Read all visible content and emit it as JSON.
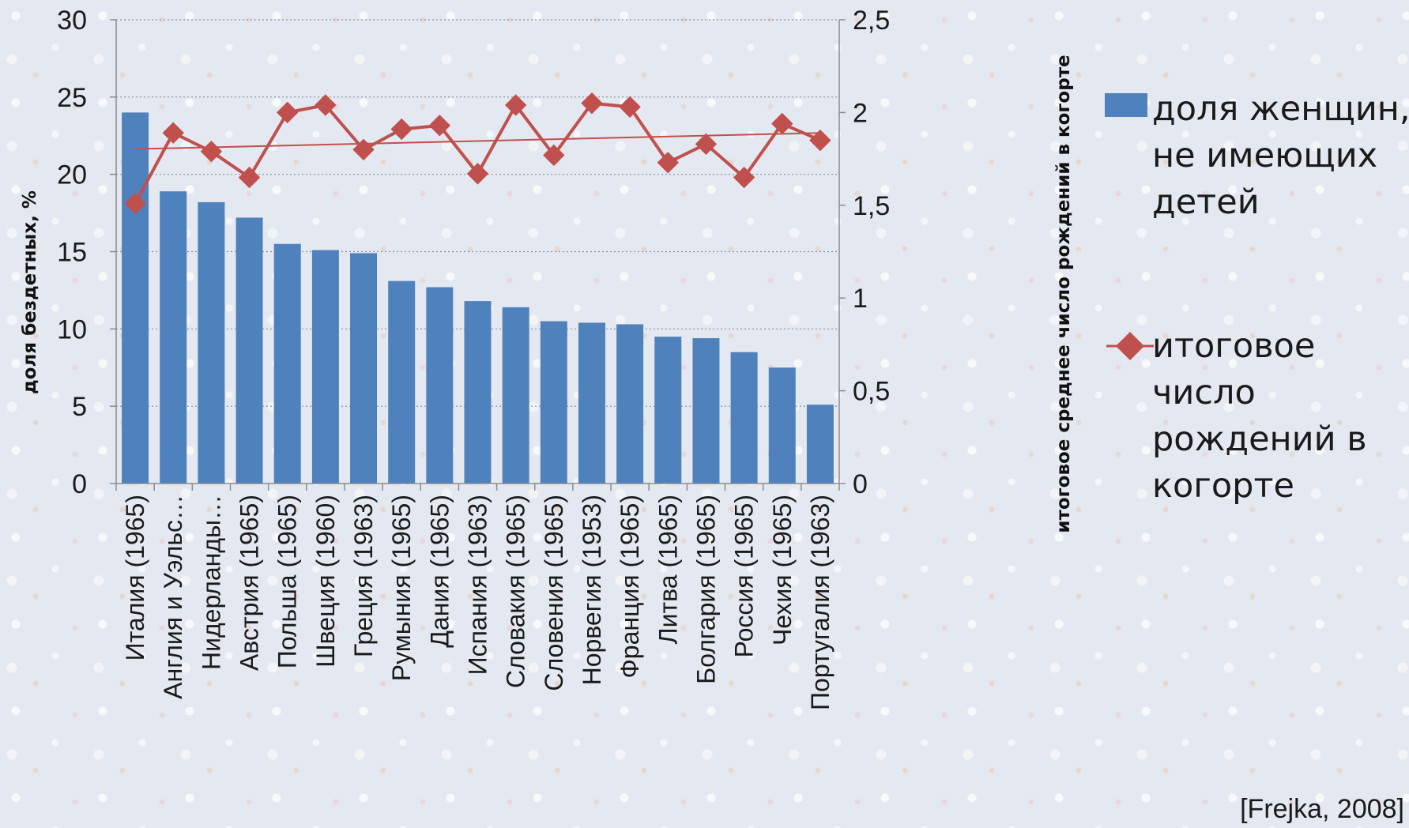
{
  "chart_data": {
    "type": "bar",
    "categories": [
      "Италия (1965)",
      "Англия и Уэльс…",
      "Нидерланды…",
      "Австрия (1965)",
      "Польша (1965)",
      "Швеция (1960)",
      "Греция (1963)",
      "Румыния (1965)",
      "Дания (1965)",
      "Испания (1963)",
      "Словакия (1965)",
      "Словения (1965)",
      "Норвегия (1953)",
      "Франция (1965)",
      "Литва (1965)",
      "Болгария (1965)",
      "Россия (1965)",
      "Чехия (1965)",
      "Португалия (1963)"
    ],
    "series": [
      {
        "name": "доля женщин, не имеющих детей",
        "type": "bar",
        "axis": "left",
        "color": "#4f81bd",
        "values": [
          24.0,
          18.9,
          18.2,
          17.2,
          15.5,
          15.1,
          14.9,
          13.1,
          12.7,
          11.8,
          11.4,
          10.5,
          10.4,
          10.3,
          9.5,
          9.4,
          8.5,
          7.5,
          5.1
        ]
      },
      {
        "name": "итоговое число рождений в когорте",
        "type": "line",
        "marker": "diamond",
        "axis": "right",
        "color": "#c0504d",
        "values": [
          1.51,
          1.89,
          1.79,
          1.65,
          2.0,
          2.04,
          1.8,
          1.91,
          1.93,
          1.67,
          2.04,
          1.77,
          2.05,
          2.03,
          1.73,
          1.83,
          1.65,
          1.94,
          1.85
        ]
      }
    ],
    "trendline": {
      "series": "итоговое число рождений в когорте",
      "type": "linear",
      "color": "#c0504d"
    },
    "y_left": {
      "label": "доля бездетных, %",
      "ylim": [
        0,
        30
      ],
      "ticks": [
        "0",
        "5",
        "10",
        "15",
        "20",
        "25",
        "30"
      ]
    },
    "y_right": {
      "label": "итоговое среднее число рождений в когорте",
      "ylim": [
        0,
        2.5
      ],
      "ticks": [
        "0",
        "0,5",
        "1",
        "1,5",
        "2",
        "2,5"
      ]
    },
    "grid": true,
    "legend": {
      "position": "right",
      "entries": [
        {
          "lines": [
            "доля женщин,",
            "не имеющих",
            "детей"
          ]
        },
        {
          "lines": [
            "итоговое",
            "число",
            "рождений в",
            "когорте"
          ]
        }
      ]
    }
  },
  "source": "[Frejka, 2008]"
}
